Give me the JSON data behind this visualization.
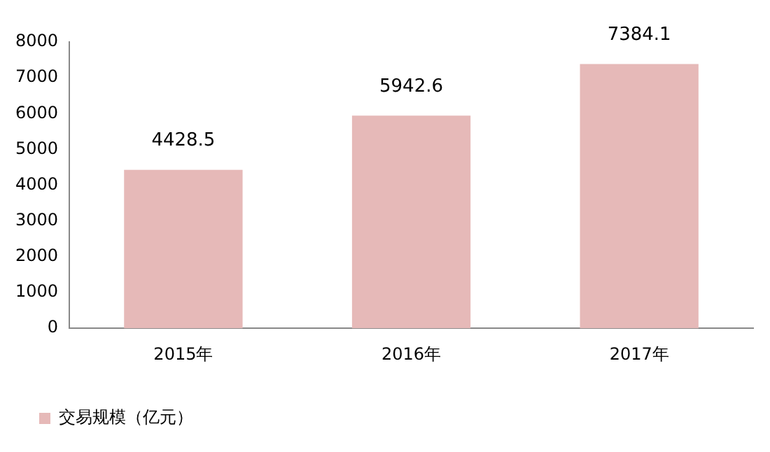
{
  "chart_data": {
    "type": "bar",
    "categories": [
      "2015年",
      "2016年",
      "2017年"
    ],
    "series": [
      {
        "name": "交易规模（亿元）",
        "color": "#e6b9b8",
        "values": [
          4428.5,
          5942.6,
          7384.1
        ]
      }
    ],
    "ylim": [
      0,
      8000
    ],
    "yticks": [
      0,
      1000,
      2000,
      3000,
      4000,
      5000,
      6000,
      7000,
      8000
    ],
    "grid": false,
    "legend": "bottom",
    "data_labels": true
  }
}
